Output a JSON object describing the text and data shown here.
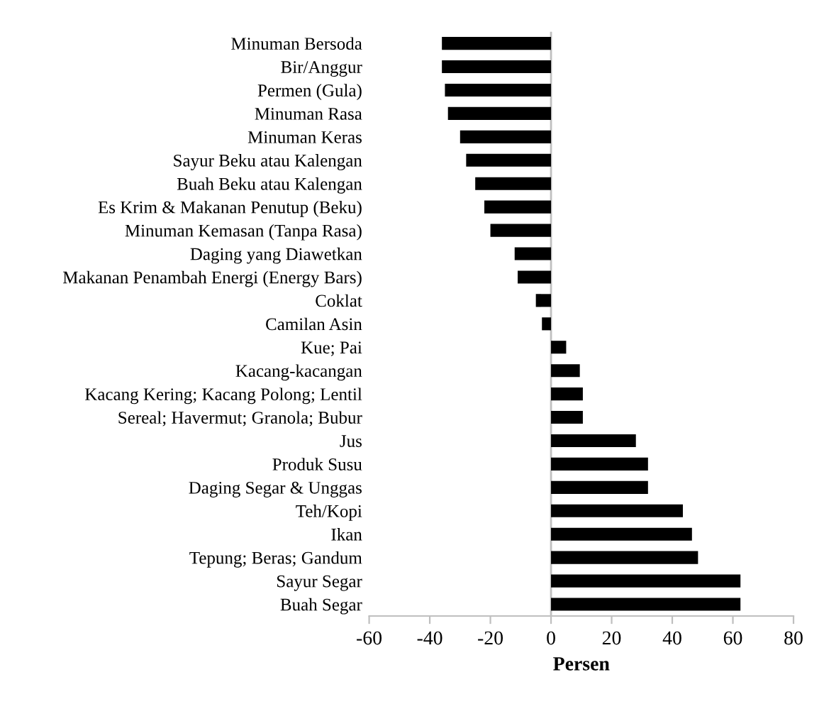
{
  "chart_data": {
    "type": "bar",
    "orientation": "horizontal",
    "xlabel": "Persen",
    "categories": [
      "Minuman Bersoda",
      "Bir/Anggur",
      "Permen (Gula)",
      "Minuman Rasa",
      "Minuman Keras",
      "Sayur Beku atau Kalengan",
      "Buah Beku atau Kalengan",
      "Es Krim & Makanan Penutup (Beku)",
      "Minuman Kemasan (Tanpa Rasa)",
      "Daging yang Diawetkan",
      "Makanan Penambah Energi (Energy Bars)",
      "Coklat",
      "Camilan Asin",
      "Kue; Pai",
      "Kacang-kacangan",
      "Kacang Kering; Kacang Polong; Lentil",
      "Sereal; Havermut; Granola; Bubur",
      "Jus",
      "Produk Susu",
      "Daging Segar & Unggas",
      "Teh/Kopi",
      "Ikan",
      "Tepung; Beras; Gandum",
      "Sayur Segar",
      "Buah Segar"
    ],
    "values": [
      -36,
      -36,
      -35,
      -34,
      -30,
      -28,
      -25,
      -22,
      -20,
      -12,
      -11,
      -5,
      -3,
      5,
      9.5,
      10.5,
      10.5,
      28,
      32,
      32,
      43.5,
      46.5,
      48.5,
      62.5,
      62.5
    ],
    "color": "#000000",
    "xlim": [
      -60,
      80
    ],
    "xticks": [
      -60,
      -40,
      -20,
      0,
      20,
      40,
      60,
      80
    ],
    "ref_lines": [
      {
        "axis": "x",
        "value": 0,
        "color": "#bfbfbf"
      }
    ]
  }
}
